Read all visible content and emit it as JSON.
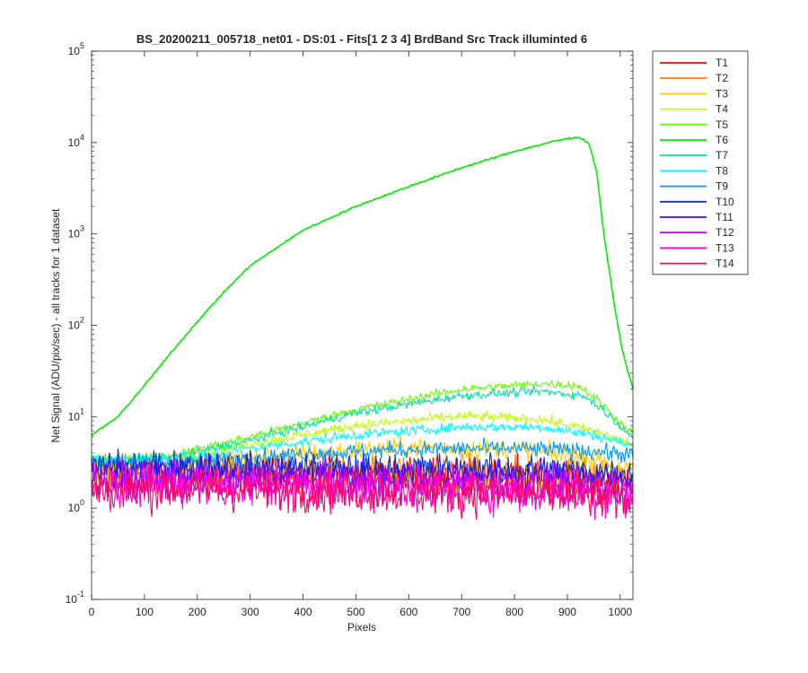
{
  "chart_data": {
    "type": "line",
    "title": "BS_20200211_005718_net01 - DS:01 - Fits[1  2  3  4]   BrdBand Src      Track illuminted 6",
    "xlabel": "Pixels",
    "ylabel": "Net Signal (ADU/pix/sec) - all tracks for 1 dataset",
    "xlim": [
      0,
      1024
    ],
    "ylim": [
      0.1,
      100000
    ],
    "yscale": "log",
    "grid": false,
    "legend_position": "outside-right",
    "xticks": [
      "0",
      "100",
      "200",
      "300",
      "400",
      "500",
      "600",
      "700",
      "800",
      "900",
      "1000"
    ],
    "yticks": [
      {
        "base": "10",
        "exp": "-1"
      },
      {
        "base": "10",
        "exp": "0"
      },
      {
        "base": "10",
        "exp": "1"
      },
      {
        "base": "10",
        "exp": "2"
      },
      {
        "base": "10",
        "exp": "3"
      },
      {
        "base": "10",
        "exp": "4"
      },
      {
        "base": "10",
        "exp": "5"
      }
    ],
    "series": [
      {
        "name": "T1",
        "color": "#ff0000",
        "noise": 0.22,
        "points": [
          [
            0,
            2.3
          ],
          [
            300,
            2.4
          ],
          [
            600,
            2.3
          ],
          [
            900,
            2.2
          ],
          [
            1024,
            1.9
          ]
        ]
      },
      {
        "name": "T2",
        "color": "#ff7f00",
        "noise": 0.22,
        "points": [
          [
            0,
            2.4
          ],
          [
            300,
            2.5
          ],
          [
            600,
            2.5
          ],
          [
            900,
            2.3
          ],
          [
            1024,
            2.0
          ]
        ]
      },
      {
        "name": "T3",
        "color": "#ffcc00",
        "noise": 0.12,
        "points": [
          [
            0,
            2.6
          ],
          [
            200,
            3.0
          ],
          [
            400,
            4.0
          ],
          [
            600,
            4.6
          ],
          [
            800,
            4.4
          ],
          [
            950,
            3.4
          ],
          [
            1024,
            2.6
          ]
        ]
      },
      {
        "name": "T4",
        "color": "#bfff00",
        "noise": 0.06,
        "points": [
          [
            0,
            3.0
          ],
          [
            150,
            3.4
          ],
          [
            300,
            5.0
          ],
          [
            500,
            8.0
          ],
          [
            700,
            10.2
          ],
          [
            850,
            9.4
          ],
          [
            950,
            7.0
          ],
          [
            1024,
            5.0
          ]
        ]
      },
      {
        "name": "T5",
        "color": "#66ff00",
        "noise": 0.05,
        "points": [
          [
            0,
            3.3
          ],
          [
            150,
            3.8
          ],
          [
            300,
            6.0
          ],
          [
            500,
            12.0
          ],
          [
            700,
            20.0
          ],
          [
            850,
            23.0
          ],
          [
            920,
            22.0
          ],
          [
            960,
            15.0
          ],
          [
            1000,
            8.5
          ],
          [
            1024,
            6.5
          ]
        ]
      },
      {
        "name": "T6",
        "color": "#00ee00",
        "noise": 0.01,
        "points": [
          [
            0,
            6.3
          ],
          [
            50,
            10
          ],
          [
            100,
            22
          ],
          [
            150,
            50
          ],
          [
            200,
            110
          ],
          [
            250,
            230
          ],
          [
            300,
            450
          ],
          [
            400,
            1100
          ],
          [
            500,
            2000
          ],
          [
            600,
            3300
          ],
          [
            700,
            5300
          ],
          [
            800,
            8000
          ],
          [
            880,
            10500
          ],
          [
            920,
            11500
          ],
          [
            940,
            10000
          ],
          [
            955,
            5000
          ],
          [
            970,
            900
          ],
          [
            990,
            150
          ],
          [
            1005,
            50
          ],
          [
            1024,
            20
          ]
        ]
      },
      {
        "name": "T7",
        "color": "#00e6a0",
        "noise": 0.05,
        "points": [
          [
            0,
            3.2
          ],
          [
            150,
            3.6
          ],
          [
            300,
            5.5
          ],
          [
            500,
            11.0
          ],
          [
            700,
            17.0
          ],
          [
            850,
            19.0
          ],
          [
            930,
            17.0
          ],
          [
            960,
            13.0
          ],
          [
            1000,
            8.0
          ],
          [
            1024,
            6.0
          ]
        ]
      },
      {
        "name": "T8",
        "color": "#00ffff",
        "noise": 0.06,
        "points": [
          [
            0,
            3.4
          ],
          [
            200,
            3.6
          ],
          [
            300,
            4.5
          ],
          [
            500,
            6.3
          ],
          [
            700,
            7.7
          ],
          [
            850,
            7.7
          ],
          [
            950,
            6.3
          ],
          [
            1024,
            4.8
          ]
        ]
      },
      {
        "name": "T9",
        "color": "#0099ff",
        "noise": 0.1,
        "points": [
          [
            0,
            3.2
          ],
          [
            200,
            3.2
          ],
          [
            400,
            3.9
          ],
          [
            600,
            4.4
          ],
          [
            800,
            4.5
          ],
          [
            950,
            4.2
          ],
          [
            1024,
            3.8
          ]
        ]
      },
      {
        "name": "T10",
        "color": "#0033cc",
        "noise": 0.18,
        "points": [
          [
            0,
            2.9
          ],
          [
            300,
            2.8
          ],
          [
            600,
            2.7
          ],
          [
            900,
            2.6
          ],
          [
            1024,
            2.4
          ]
        ]
      },
      {
        "name": "T11",
        "color": "#4d00ff",
        "noise": 0.2,
        "points": [
          [
            0,
            2.5
          ],
          [
            300,
            2.4
          ],
          [
            600,
            2.3
          ],
          [
            900,
            2.2
          ],
          [
            1024,
            2.0
          ]
        ]
      },
      {
        "name": "T12",
        "color": "#cc00ff",
        "noise": 0.24,
        "points": [
          [
            0,
            2.0
          ],
          [
            300,
            1.9
          ],
          [
            600,
            1.8
          ],
          [
            900,
            1.7
          ],
          [
            1024,
            1.5
          ]
        ]
      },
      {
        "name": "T13",
        "color": "#ff00cc",
        "noise": 0.26,
        "points": [
          [
            0,
            1.8
          ],
          [
            300,
            1.7
          ],
          [
            600,
            1.6
          ],
          [
            900,
            1.5
          ],
          [
            1024,
            1.3
          ]
        ]
      },
      {
        "name": "T14",
        "color": "#ff0066",
        "noise": 0.26,
        "points": [
          [
            0,
            1.6
          ],
          [
            300,
            1.6
          ],
          [
            600,
            1.5
          ],
          [
            900,
            1.4
          ],
          [
            1024,
            1.2
          ]
        ]
      }
    ]
  }
}
